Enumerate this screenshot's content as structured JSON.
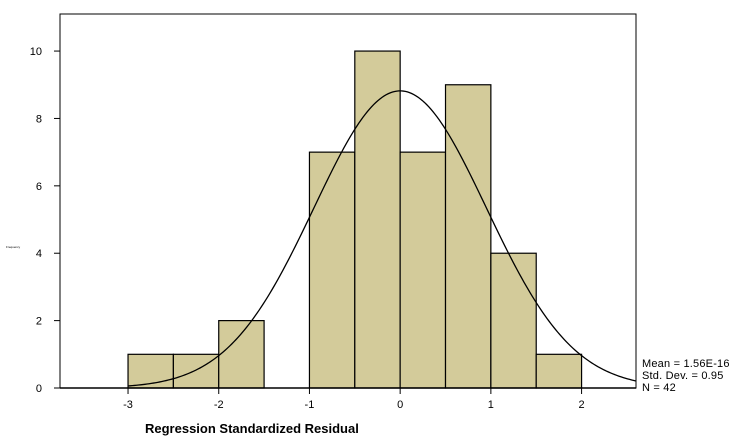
{
  "chart_data": {
    "type": "bar",
    "bins": [
      {
        "x0": -3.0,
        "x1": -2.5,
        "count": 1
      },
      {
        "x0": -2.5,
        "x1": -2.0,
        "count": 1
      },
      {
        "x0": -2.0,
        "x1": -1.5,
        "count": 2
      },
      {
        "x0": -1.5,
        "x1": -1.0,
        "count": 0
      },
      {
        "x0": -1.0,
        "x1": -0.5,
        "count": 7
      },
      {
        "x0": -0.5,
        "x1": 0.0,
        "count": 10
      },
      {
        "x0": 0.0,
        "x1": 0.5,
        "count": 7
      },
      {
        "x0": 0.5,
        "x1": 1.0,
        "count": 9
      },
      {
        "x0": 1.0,
        "x1": 1.5,
        "count": 4
      },
      {
        "x0": 1.5,
        "x1": 2.0,
        "count": 1
      }
    ],
    "normal_curve": {
      "mean": 0.0,
      "sd": 0.95,
      "n": 42,
      "bin_width": 0.5
    },
    "x_ticks": [
      "-3",
      "-2",
      "-1",
      "0",
      "1",
      "2"
    ],
    "y_ticks": [
      "0",
      "2",
      "4",
      "6",
      "8",
      "10"
    ],
    "xlim": [
      -3.75,
      2.6
    ],
    "ylim": [
      0,
      11.1
    ],
    "xlabel": "Regression Standardized Residual",
    "ylabel": "Frequency",
    "bar_color": "#d3cb9a",
    "stats": {
      "mean_label": "Mean = 1.56E-16",
      "sd_label": "Std. Dev. = 0.95",
      "n_label": "N = 42"
    }
  }
}
